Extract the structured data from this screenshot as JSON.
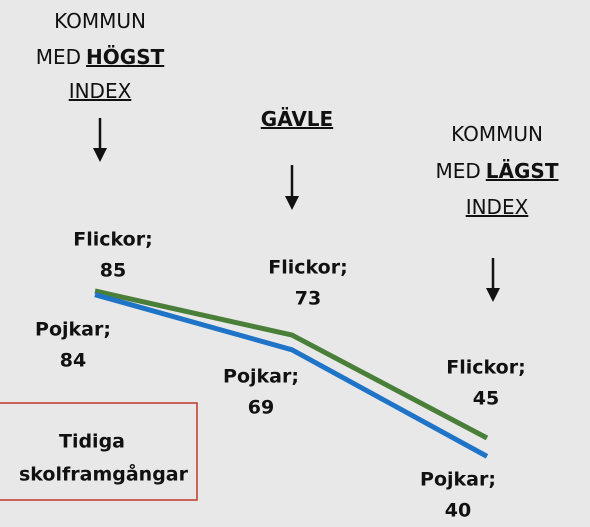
{
  "chart_data": {
    "type": "line",
    "headers": [
      [
        [
          {
            "text": "KOMMUN"
          }
        ],
        [
          {
            "text": "MED"
          },
          {
            "text": "HÖGST",
            "bold": true,
            "underline": true
          }
        ],
        [
          {
            "text": "INDEX",
            "underline": true
          }
        ]
      ],
      [
        [
          {
            "text": "GÄVLE",
            "bold": true,
            "underline": true
          }
        ]
      ],
      [
        [
          {
            "text": "KOMMUN"
          }
        ],
        [
          {
            "text": "MED"
          },
          {
            "text": "LÄGST",
            "bold": true,
            "underline": true
          }
        ],
        [
          {
            "text": "INDEX",
            "underline": true
          }
        ]
      ]
    ],
    "categories": [
      null,
      null,
      null
    ],
    "series": [
      {
        "name": "Flickor;",
        "color": "#4a7f3a",
        "values": [
          85,
          73,
          45
        ]
      },
      {
        "name": "Pojkar;",
        "color": "#1f74c8",
        "values": [
          84,
          69,
          40
        ]
      }
    ],
    "ylim": [
      35,
      95
    ],
    "box": {
      "lines": [
        "Tidiga",
        "skolframgångar"
      ],
      "color": "#c0392b"
    }
  }
}
